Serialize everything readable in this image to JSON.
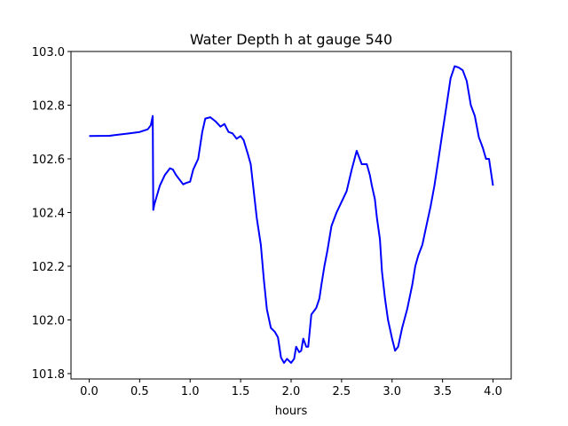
{
  "chart_data": {
    "type": "line",
    "title": "Water Depth h at gauge 540",
    "xlabel": "hours",
    "ylabel": "",
    "xlim": [
      -0.18,
      4.18
    ],
    "ylim": [
      101.78,
      103.0
    ],
    "xticks": [
      0.0,
      0.5,
      1.0,
      1.5,
      2.0,
      2.5,
      3.0,
      3.5,
      4.0
    ],
    "xtick_labels": [
      "0.0",
      "0.5",
      "1.0",
      "1.5",
      "2.0",
      "2.5",
      "3.0",
      "3.5",
      "4.0"
    ],
    "yticks": [
      101.8,
      102.0,
      102.2,
      102.4,
      102.6,
      102.8,
      103.0
    ],
    "ytick_labels": [
      "101.8",
      "102.0",
      "102.2",
      "102.4",
      "102.6",
      "102.8",
      "103.0"
    ],
    "grid": false,
    "series": [
      {
        "color": "#0000ff",
        "x": [
          0.0,
          0.2,
          0.4,
          0.5,
          0.58,
          0.61,
          0.63,
          0.635,
          0.645,
          0.7,
          0.75,
          0.8,
          0.83,
          0.86,
          0.9,
          0.93,
          0.96,
          1.0,
          1.03,
          1.08,
          1.12,
          1.15,
          1.2,
          1.25,
          1.3,
          1.34,
          1.38,
          1.42,
          1.46,
          1.5,
          1.53,
          1.57,
          1.6,
          1.63,
          1.66,
          1.7,
          1.73,
          1.76,
          1.8,
          1.84,
          1.87,
          1.9,
          1.93,
          1.96,
          2.0,
          2.03,
          2.05,
          2.08,
          2.1,
          2.12,
          2.15,
          2.17,
          2.2,
          2.23,
          2.25,
          2.28,
          2.3,
          2.33,
          2.36,
          2.4,
          2.45,
          2.5,
          2.55,
          2.6,
          2.65,
          2.7,
          2.75,
          2.78,
          2.8,
          2.83,
          2.85,
          2.88,
          2.9,
          2.93,
          2.96,
          3.0,
          3.03,
          3.06,
          3.1,
          3.15,
          3.2,
          3.23,
          3.26,
          3.3,
          3.34,
          3.38,
          3.42,
          3.46,
          3.5,
          3.54,
          3.58,
          3.62,
          3.66,
          3.7,
          3.74,
          3.78,
          3.82,
          3.86,
          3.88,
          3.9,
          3.93,
          3.96,
          4.0
        ],
        "y": [
          102.685,
          102.686,
          102.695,
          102.7,
          102.71,
          102.725,
          102.76,
          102.41,
          102.43,
          102.5,
          102.54,
          102.565,
          102.56,
          102.54,
          102.52,
          102.505,
          102.51,
          102.515,
          102.56,
          102.6,
          102.7,
          102.75,
          102.755,
          102.74,
          102.72,
          102.73,
          102.7,
          102.695,
          102.675,
          102.685,
          102.67,
          102.62,
          102.58,
          102.48,
          102.38,
          102.28,
          102.15,
          102.04,
          101.97,
          101.955,
          101.935,
          101.86,
          101.84,
          101.855,
          101.84,
          101.855,
          101.9,
          101.88,
          101.885,
          101.93,
          101.9,
          101.9,
          102.02,
          102.035,
          102.045,
          102.08,
          102.13,
          102.2,
          102.26,
          102.35,
          102.4,
          102.44,
          102.48,
          102.56,
          102.63,
          102.58,
          102.58,
          102.54,
          102.5,
          102.45,
          102.38,
          102.3,
          102.18,
          102.08,
          102.0,
          101.93,
          101.885,
          101.9,
          101.97,
          102.04,
          102.13,
          102.2,
          102.24,
          102.28,
          102.35,
          102.42,
          102.5,
          102.6,
          102.7,
          102.8,
          102.9,
          102.945,
          102.94,
          102.93,
          102.89,
          102.8,
          102.76,
          102.68,
          102.66,
          102.64,
          102.6,
          102.6,
          102.5
        ],
        "label_hidden": true
      }
    ]
  }
}
